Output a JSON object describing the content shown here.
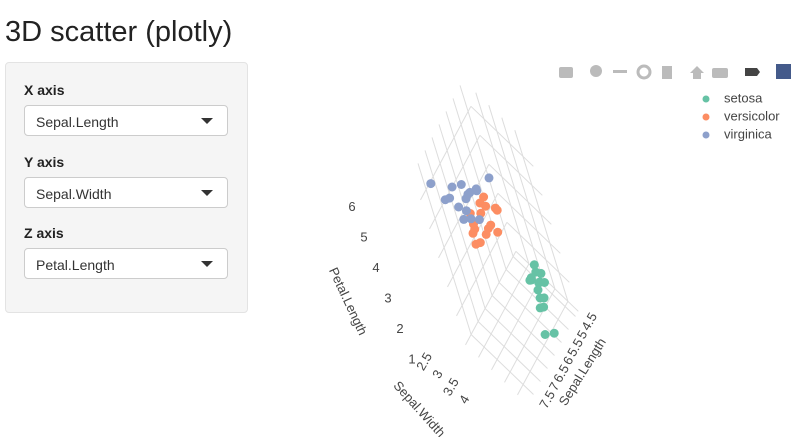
{
  "page": {
    "title": "3D scatter (plotly)"
  },
  "sidebar": {
    "inputs": [
      {
        "label": "X axis",
        "selected": "Sepal.Length"
      },
      {
        "label": "Y axis",
        "selected": "Sepal.Width"
      },
      {
        "label": "Z axis",
        "selected": "Petal.Length"
      }
    ]
  },
  "chart_data": {
    "type": "scatter3d",
    "x_title": "Sepal.Length",
    "y_title": "Sepal.Width",
    "z_title": "Petal.Length",
    "xlim": [
      4.3,
      7.9
    ],
    "ylim": [
      2,
      4.4
    ],
    "zlim": [
      1,
      6.9
    ],
    "xticks": [
      4.5,
      5,
      5.5,
      6,
      6.5,
      7,
      7.5
    ],
    "yticks": [
      2.5,
      3,
      3.5,
      4
    ],
    "zticks": [
      1,
      2,
      3,
      4,
      5,
      6
    ],
    "series": [
      {
        "name": "setosa",
        "color": "#66c2a5",
        "x": [
          5.1,
          4.9,
          4.7,
          4.6,
          5.0,
          5.4,
          4.6,
          5.0,
          4.4,
          4.9,
          5.4,
          4.8,
          4.8,
          4.3,
          5.8,
          5.7
        ],
        "y": [
          3.5,
          3.0,
          3.2,
          3.1,
          3.6,
          3.9,
          3.4,
          3.4,
          2.9,
          3.1,
          3.7,
          3.4,
          3.0,
          3.0,
          4.0,
          4.4
        ],
        "z": [
          1.4,
          1.4,
          1.3,
          1.5,
          1.4,
          1.7,
          1.4,
          1.5,
          1.4,
          1.5,
          1.5,
          1.6,
          1.4,
          1.1,
          1.2,
          1.5
        ]
      },
      {
        "name": "versicolor",
        "color": "#fc8d62",
        "x": [
          7.0,
          6.4,
          6.9,
          5.5,
          6.5,
          5.7,
          6.3,
          4.9,
          6.6,
          5.2,
          5.0,
          5.9,
          6.0,
          6.1,
          5.6,
          6.7
        ],
        "y": [
          3.2,
          3.2,
          3.1,
          2.3,
          2.8,
          2.8,
          3.3,
          2.4,
          2.9,
          2.7,
          2.0,
          3.0,
          2.2,
          2.9,
          2.9,
          3.1
        ],
        "z": [
          4.7,
          4.5,
          4.9,
          4.0,
          4.6,
          4.5,
          4.7,
          3.3,
          4.6,
          3.9,
          3.5,
          4.2,
          4.0,
          4.7,
          3.6,
          4.4
        ]
      },
      {
        "name": "virginica",
        "color": "#8da0cb",
        "x": [
          6.3,
          5.8,
          7.1,
          6.3,
          6.5,
          7.6,
          4.9,
          7.3,
          6.7,
          7.2,
          6.5,
          6.4,
          6.8,
          7.7,
          7.7,
          6.0
        ],
        "y": [
          3.3,
          2.7,
          3.0,
          2.9,
          3.0,
          3.0,
          2.5,
          2.9,
          2.5,
          3.6,
          3.2,
          2.7,
          3.0,
          3.8,
          2.6,
          2.2
        ],
        "z": [
          6.0,
          5.1,
          5.9,
          5.6,
          5.8,
          6.6,
          4.5,
          6.3,
          5.8,
          6.1,
          5.1,
          5.3,
          5.5,
          6.7,
          6.9,
          5.0
        ]
      }
    ]
  }
}
